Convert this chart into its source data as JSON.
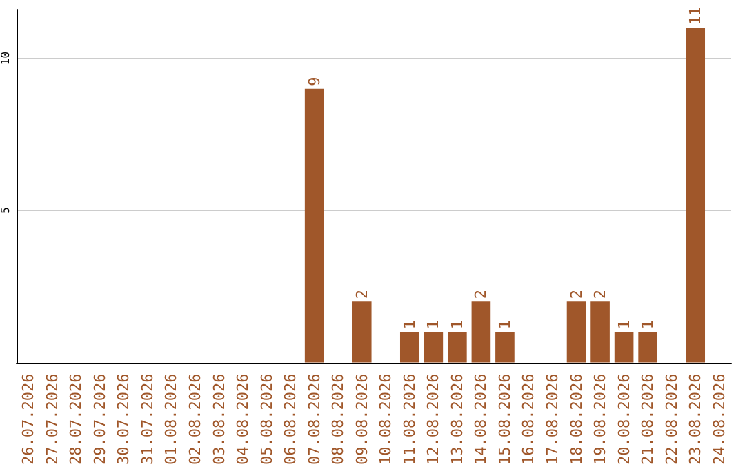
{
  "chart_data": {
    "type": "bar",
    "categories": [
      "26.07.2026",
      "27.07.2026",
      "28.07.2026",
      "29.07.2026",
      "30.07.2026",
      "31.07.2026",
      "01.08.2026",
      "02.08.2026",
      "03.08.2026",
      "04.08.2026",
      "05.08.2026",
      "06.08.2026",
      "07.08.2026",
      "08.08.2026",
      "09.08.2026",
      "10.08.2026",
      "11.08.2026",
      "12.08.2026",
      "13.08.2026",
      "14.08.2026",
      "15.08.2026",
      "16.08.2026",
      "17.08.2026",
      "18.08.2026",
      "19.08.2026",
      "20.08.2026",
      "21.08.2026",
      "22.08.2026",
      "23.08.2026",
      "24.08.2026"
    ],
    "values": [
      0,
      0,
      0,
      0,
      0,
      0,
      0,
      0,
      0,
      0,
      0,
      0,
      9,
      0,
      2,
      0,
      1,
      1,
      1,
      2,
      1,
      0,
      0,
      2,
      2,
      1,
      1,
      0,
      11,
      0
    ],
    "value_labels": [
      null,
      null,
      null,
      null,
      null,
      null,
      null,
      null,
      null,
      null,
      null,
      null,
      "9",
      null,
      "2",
      null,
      "1",
      "1",
      "1",
      "2",
      "1",
      null,
      null,
      "2",
      "2",
      "1",
      "1",
      null,
      "11",
      null
    ],
    "color": "#a0572a",
    "ylim": [
      0,
      11.6
    ],
    "yticks": [
      5,
      10
    ],
    "grid": "y"
  }
}
